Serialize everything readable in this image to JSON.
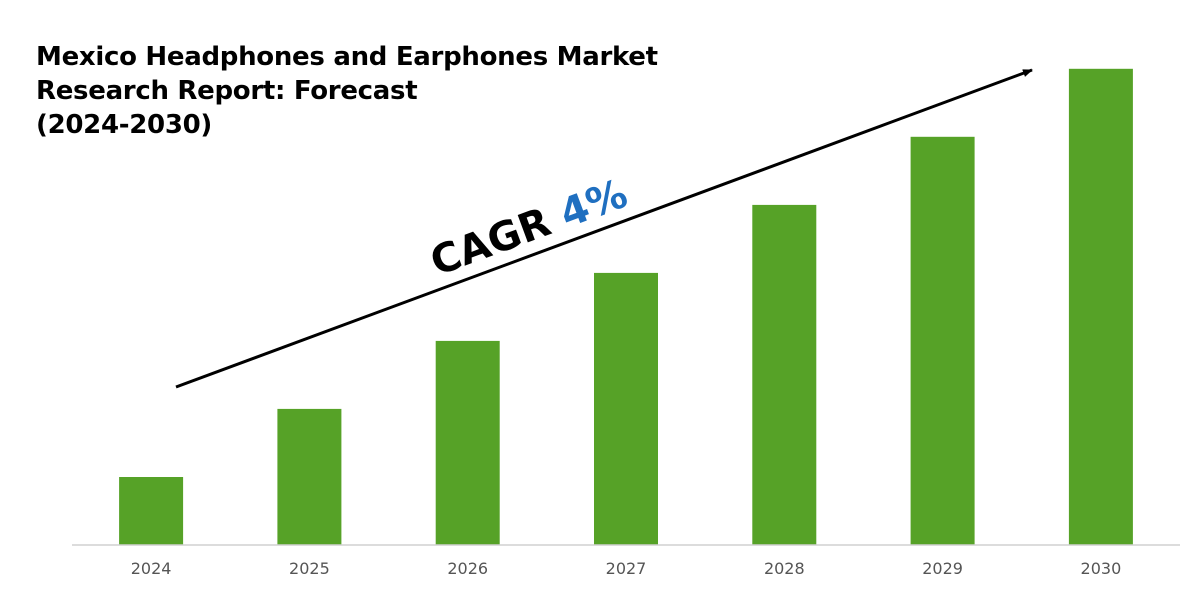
{
  "title_lines": [
    "Mexico Headphones and Earphones Market",
    "Research Report: Forecast",
    "(2024-2030)"
  ],
  "annotation": {
    "prefix": "CAGR",
    "value": "4%",
    "prefix_color": "#000000",
    "value_color": "#1f6fc0"
  },
  "colors": {
    "bar": "#56a227",
    "axis": "#d0d0d0",
    "arrow": "#000000"
  },
  "chart_data": {
    "type": "bar",
    "title": "Mexico Headphones and Earphones Market Research Report: Forecast (2024-2030)",
    "categories": [
      "2024",
      "2025",
      "2026",
      "2027",
      "2028",
      "2029",
      "2030"
    ],
    "values": [
      1,
      2,
      3,
      4,
      5,
      6,
      7
    ],
    "xlabel": "",
    "ylabel": "",
    "ylim": [
      0,
      7.1
    ],
    "grid": false,
    "legend": "none",
    "annotation": "CAGR 4%"
  }
}
